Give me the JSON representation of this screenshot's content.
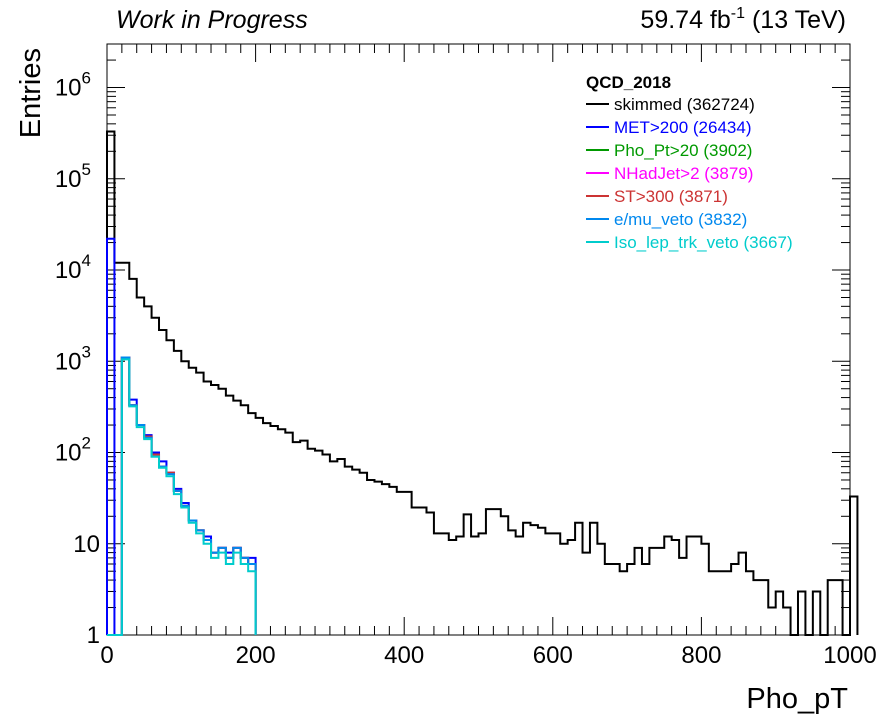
{
  "header": {
    "left": "Work in Progress",
    "lumi_value": "59.74 fb",
    "lumi_exp": "-1",
    "lumi_energy": " (13 TeV)"
  },
  "chart_data": {
    "type": "line",
    "style": "step-histogram",
    "title": "",
    "xlabel": "Pho_pT",
    "ylabel": "Entries",
    "xlim": [
      0,
      1000
    ],
    "ylim": [
      1,
      3000000
    ],
    "yscale": "log",
    "bin_width": 10,
    "x_ticks": [
      "0",
      "200",
      "400",
      "600",
      "800",
      "1000"
    ],
    "y_ticks": [
      {
        "base": "1",
        "exp": ""
      },
      {
        "base": "10",
        "exp": ""
      },
      {
        "base": "10",
        "exp": "2"
      },
      {
        "base": "10",
        "exp": "3"
      },
      {
        "base": "10",
        "exp": "4"
      },
      {
        "base": "10",
        "exp": "5"
      },
      {
        "base": "10",
        "exp": "6"
      }
    ],
    "legend": {
      "title": "QCD_2018",
      "placement": "top-right"
    },
    "series": [
      {
        "name": "skimmed (362724)",
        "color": "#000000",
        "values": [
          330000,
          12000,
          12000,
          8000,
          5000,
          4000,
          3000,
          2200,
          1700,
          1300,
          1000,
          850,
          750,
          600,
          550,
          500,
          420,
          370,
          330,
          270,
          240,
          210,
          195,
          180,
          165,
          130,
          135,
          110,
          105,
          95,
          80,
          85,
          70,
          65,
          60,
          50,
          48,
          45,
          42,
          37,
          37,
          25,
          25,
          22,
          13,
          13,
          11,
          12,
          21,
          12,
          13,
          24,
          24,
          20,
          14,
          12,
          17,
          16,
          15,
          13,
          13,
          10,
          11,
          17,
          8,
          17,
          10,
          6,
          6,
          5,
          6,
          9,
          6,
          9,
          9,
          12,
          11,
          7,
          12,
          12,
          10,
          5,
          5,
          5,
          6,
          8,
          5,
          4,
          4,
          2,
          3,
          2,
          1,
          3,
          1,
          3,
          1,
          4,
          4,
          1,
          33
        ]
      },
      {
        "name": "MET>200 (26434)",
        "color": "#0000ff",
        "values": [
          22000,
          1,
          1100,
          380,
          200,
          155,
          100,
          80,
          60,
          40,
          28,
          18,
          14,
          12,
          8,
          9,
          8,
          9,
          7,
          7
        ]
      },
      {
        "name": "Pho_Pt>20 (3902)",
        "color": "#009900",
        "values": [
          1,
          1,
          1100,
          330,
          200,
          150,
          95,
          70,
          60,
          38,
          26,
          18,
          14,
          11,
          8,
          9,
          7,
          9,
          7,
          6
        ]
      },
      {
        "name": "NHadJet>2 (3879)",
        "color": "#ff00ff",
        "values": [
          1,
          1,
          1100,
          330,
          200,
          150,
          95,
          70,
          60,
          38,
          26,
          18,
          14,
          11,
          8,
          9,
          7,
          9,
          7,
          6
        ]
      },
      {
        "name": "ST>300 (3871)",
        "color": "#cc3333",
        "values": [
          1,
          1,
          1100,
          330,
          200,
          150,
          95,
          70,
          60,
          38,
          26,
          18,
          14,
          11,
          8,
          9,
          7,
          9,
          7,
          6
        ]
      },
      {
        "name": "e/mu_veto (3832)",
        "color": "#0088ee",
        "values": [
          1,
          1,
          1100,
          330,
          200,
          145,
          90,
          70,
          58,
          38,
          26,
          18,
          14,
          11,
          8,
          9,
          7,
          9,
          7,
          6
        ]
      },
      {
        "name": "Iso_lep_trk_veto (3667)",
        "color": "#00cccc",
        "values": [
          1,
          1,
          1050,
          320,
          190,
          140,
          90,
          68,
          55,
          35,
          25,
          17,
          13,
          10,
          7,
          8,
          6,
          8,
          6,
          5
        ]
      }
    ]
  }
}
